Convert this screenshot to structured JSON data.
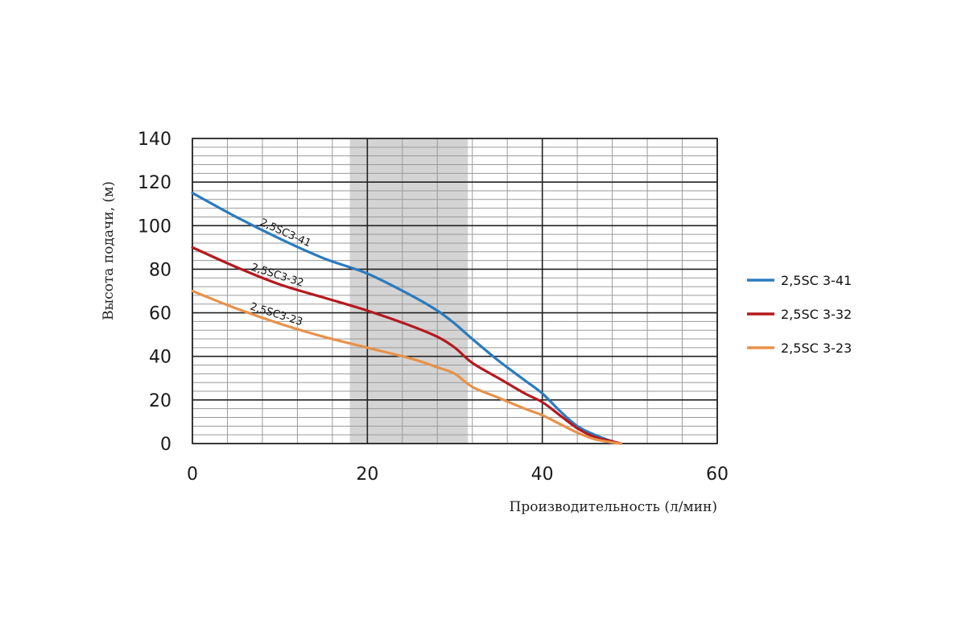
{
  "chart_data": {
    "type": "line",
    "title": "",
    "xlabel": "Производительность (л/мин)",
    "ylabel": "Высота подачи, (м)",
    "xlim": [
      0,
      60
    ],
    "ylim": [
      0,
      140
    ],
    "x_ticks": [
      "0",
      "20",
      "40",
      "60"
    ],
    "y_ticks": [
      "0",
      "20",
      "40",
      "60",
      "80",
      "100",
      "120",
      "140"
    ],
    "grid": true,
    "highlight_band": {
      "x_from": 18,
      "x_to": 31.5,
      "color": "#d4d4d4"
    },
    "legend_position": "right",
    "series": [
      {
        "name": "2,5SC 3-41",
        "curve_label": "2,5SC3-41",
        "color": "#2b7bbf",
        "x": [
          0,
          5,
          10,
          15,
          20,
          25,
          28,
          30,
          32,
          35,
          38,
          40,
          42,
          44,
          46,
          48,
          49
        ],
        "y": [
          115,
          104,
          94,
          85,
          78,
          68,
          61,
          55,
          48,
          38,
          29,
          23,
          15,
          8,
          4,
          1,
          0
        ]
      },
      {
        "name": "2,5SC 3-32",
        "curve_label": "2,5SC3-32",
        "color": "#b5191f",
        "x": [
          0,
          5,
          10,
          15,
          20,
          25,
          28,
          30,
          32,
          35,
          38,
          40,
          42,
          44,
          46,
          48,
          49
        ],
        "y": [
          90,
          81,
          73,
          67,
          61,
          54,
          49,
          44,
          37,
          30,
          23,
          19,
          13,
          7,
          3,
          1,
          0
        ]
      },
      {
        "name": "2,5SC 3-23",
        "curve_label": "2,5SC3-23",
        "color": "#e8914a",
        "x": [
          0,
          5,
          10,
          15,
          20,
          25,
          28,
          30,
          32,
          35,
          38,
          40,
          42,
          44,
          46,
          48,
          49
        ],
        "y": [
          70,
          62,
          55,
          49,
          44,
          39,
          35,
          32,
          26,
          21,
          16,
          13,
          9,
          5,
          2,
          0.5,
          0
        ]
      }
    ]
  }
}
